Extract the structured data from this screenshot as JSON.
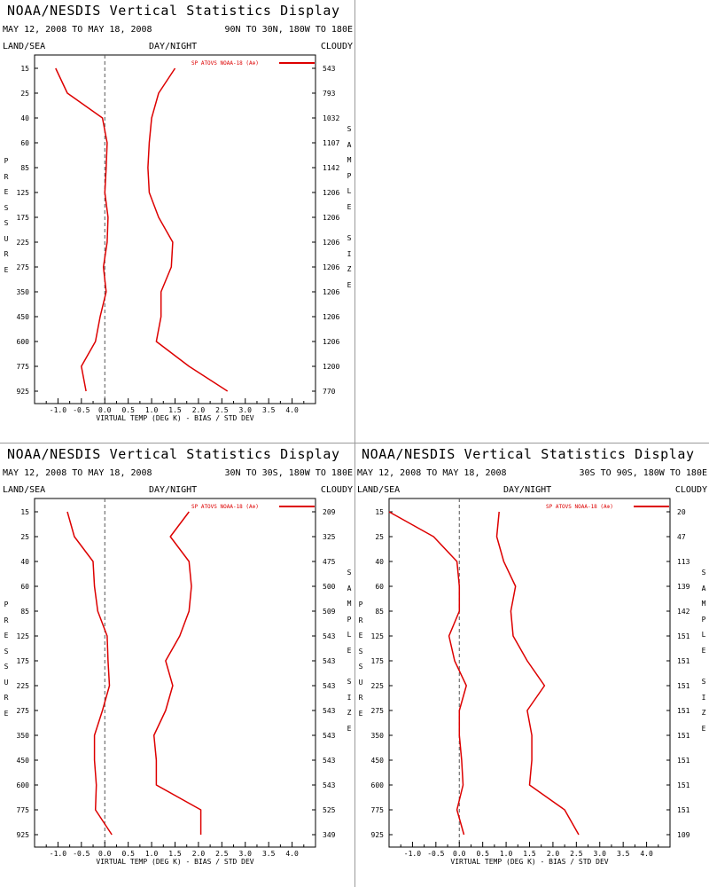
{
  "panels": [
    {
      "title": "NOAA/NESDIS Vertical Statistics Display",
      "date_range": "MAY 12, 2008 TO MAY 18, 2008",
      "region": "90N TO 30N, 180W TO 180E",
      "left_label": "LAND/SEA",
      "center_label": "DAY/NIGHT",
      "right_label": "CLOUDY",
      "left_axis_label": "PRESSURE",
      "right_axis_label": "SAMPLE SIZE",
      "x_axis_label": "VIRTUAL TEMP (DEG K) - BIAS / STD DEV",
      "legend": "SP ATOVS NOAA-18 (A⊕)"
    },
    {
      "title": "NOAA/NESDIS Vertical Statistics Display",
      "date_range": "MAY 12, 2008 TO MAY 18, 2008",
      "region": "30N TO 30S, 180W TO 180E",
      "left_label": "LAND/SEA",
      "center_label": "DAY/NIGHT",
      "right_label": "CLOUDY",
      "left_axis_label": "PRESSURE",
      "right_axis_label": "SAMPLE SIZE",
      "x_axis_label": "VIRTUAL TEMP (DEG K) - BIAS / STD DEV",
      "legend": "SP ATOVS NOAA-18 (A⊕)"
    },
    {
      "title": "NOAA/NESDIS Vertical Statistics Display",
      "date_range": "MAY 12, 2008 TO MAY 18, 2008",
      "region": "30S TO 90S, 180W TO 180E",
      "left_label": "LAND/SEA",
      "center_label": "DAY/NIGHT",
      "right_label": "CLOUDY",
      "left_axis_label": "PRESSURE",
      "right_axis_label": "SAMPLE SIZE",
      "x_axis_label": "VIRTUAL TEMP (DEG K) - BIAS / STD DEV",
      "legend": "SP ATOVS NOAA-18 (A⊕)"
    }
  ],
  "chart_data": [
    {
      "type": "line",
      "title": "NOAA/NESDIS Vertical Statistics Display",
      "subtitle": "MAY 12, 2008 TO MAY 18, 2008  90N TO 30N, 180W TO 180E",
      "xlabel": "VIRTUAL TEMP (DEG K) - BIAS / STD DEV",
      "ylabel": "PRESSURE",
      "y_right_label": "SAMPLE SIZE",
      "xlim": [
        -1.5,
        4.5
      ],
      "x_ticks": [
        "-1.0",
        "-0.5",
        "0.0",
        "0.5",
        "1.0",
        "1.5",
        "2.0",
        "2.5",
        "3.0",
        "3.5",
        "4.0"
      ],
      "pressure_levels": [
        "15",
        "25",
        "40",
        "60",
        "85",
        "125",
        "175",
        "225",
        "275",
        "350",
        "450",
        "600",
        "775",
        "925"
      ],
      "sample_size": [
        "543",
        "793",
        "1032",
        "1107",
        "1142",
        "1206",
        "1206",
        "1206",
        "1206",
        "1206",
        "1206",
        "1206",
        "1200",
        "770"
      ],
      "legend_position": "top-right",
      "color": "#dd0000",
      "series": [
        {
          "name": "bias",
          "values": [
            -1.05,
            -0.8,
            -0.05,
            0.05,
            0.03,
            0.0,
            0.07,
            0.05,
            -0.03,
            0.03,
            -0.1,
            -0.2,
            -0.5,
            -0.4
          ]
        },
        {
          "name": "std dev",
          "values": [
            1.5,
            1.15,
            1.0,
            0.95,
            0.92,
            0.95,
            1.15,
            1.45,
            1.42,
            1.2,
            1.2,
            1.1,
            1.8,
            2.62
          ]
        }
      ]
    },
    {
      "type": "line",
      "title": "NOAA/NESDIS Vertical Statistics Display",
      "subtitle": "MAY 12, 2008 TO MAY 18, 2008  30N TO 30S, 180W TO 180E",
      "xlabel": "VIRTUAL TEMP (DEG K) - BIAS / STD DEV",
      "ylabel": "PRESSURE",
      "y_right_label": "SAMPLE SIZE",
      "xlim": [
        -1.5,
        4.5
      ],
      "x_ticks": [
        "-1.0",
        "-0.5",
        "0.0",
        "0.5",
        "1.0",
        "1.5",
        "2.0",
        "2.5",
        "3.0",
        "3.5",
        "4.0"
      ],
      "pressure_levels": [
        "15",
        "25",
        "40",
        "60",
        "85",
        "125",
        "175",
        "225",
        "275",
        "350",
        "450",
        "600",
        "775",
        "925"
      ],
      "sample_size": [
        "209",
        "325",
        "475",
        "500",
        "509",
        "543",
        "543",
        "543",
        "543",
        "543",
        "543",
        "543",
        "525",
        "349"
      ],
      "legend_position": "top-right",
      "color": "#dd0000",
      "series": [
        {
          "name": "bias",
          "values": [
            -0.8,
            -0.65,
            -0.25,
            -0.22,
            -0.15,
            0.05,
            0.07,
            0.1,
            -0.05,
            -0.22,
            -0.22,
            -0.18,
            -0.2,
            0.15
          ]
        },
        {
          "name": "std dev",
          "values": [
            1.8,
            1.4,
            1.8,
            1.85,
            1.8,
            1.6,
            1.3,
            1.45,
            1.3,
            1.05,
            1.1,
            1.1,
            2.05,
            2.05
          ]
        }
      ]
    },
    {
      "type": "line",
      "title": "NOAA/NESDIS Vertical Statistics Display",
      "subtitle": "MAY 12, 2008 TO MAY 18, 2008  30S TO 90S, 180W TO 180E",
      "xlabel": "VIRTUAL TEMP (DEG K) - BIAS / STD DEV",
      "ylabel": "PRESSURE",
      "y_right_label": "SAMPLE SIZE",
      "xlim": [
        -1.5,
        4.5
      ],
      "x_ticks": [
        "-1.0",
        "-0.5",
        "0.0",
        "0.5",
        "1.0",
        "1.5",
        "2.0",
        "2.5",
        "3.0",
        "3.5",
        "4.0"
      ],
      "pressure_levels": [
        "15",
        "25",
        "40",
        "60",
        "85",
        "125",
        "175",
        "225",
        "275",
        "350",
        "450",
        "600",
        "775",
        "925"
      ],
      "sample_size": [
        "20",
        "47",
        "113",
        "139",
        "142",
        "151",
        "151",
        "151",
        "151",
        "151",
        "151",
        "151",
        "151",
        "109"
      ],
      "legend_position": "top-right",
      "color": "#dd0000",
      "series": [
        {
          "name": "bias",
          "values": [
            -1.5,
            -0.55,
            -0.05,
            0.0,
            0.0,
            -0.22,
            -0.1,
            0.15,
            0.0,
            0.0,
            0.05,
            0.08,
            -0.05,
            0.1
          ]
        },
        {
          "name": "std dev",
          "values": [
            0.85,
            0.8,
            0.95,
            1.2,
            1.1,
            1.15,
            1.45,
            1.82,
            1.45,
            1.55,
            1.55,
            1.5,
            2.25,
            2.55
          ]
        }
      ]
    }
  ]
}
